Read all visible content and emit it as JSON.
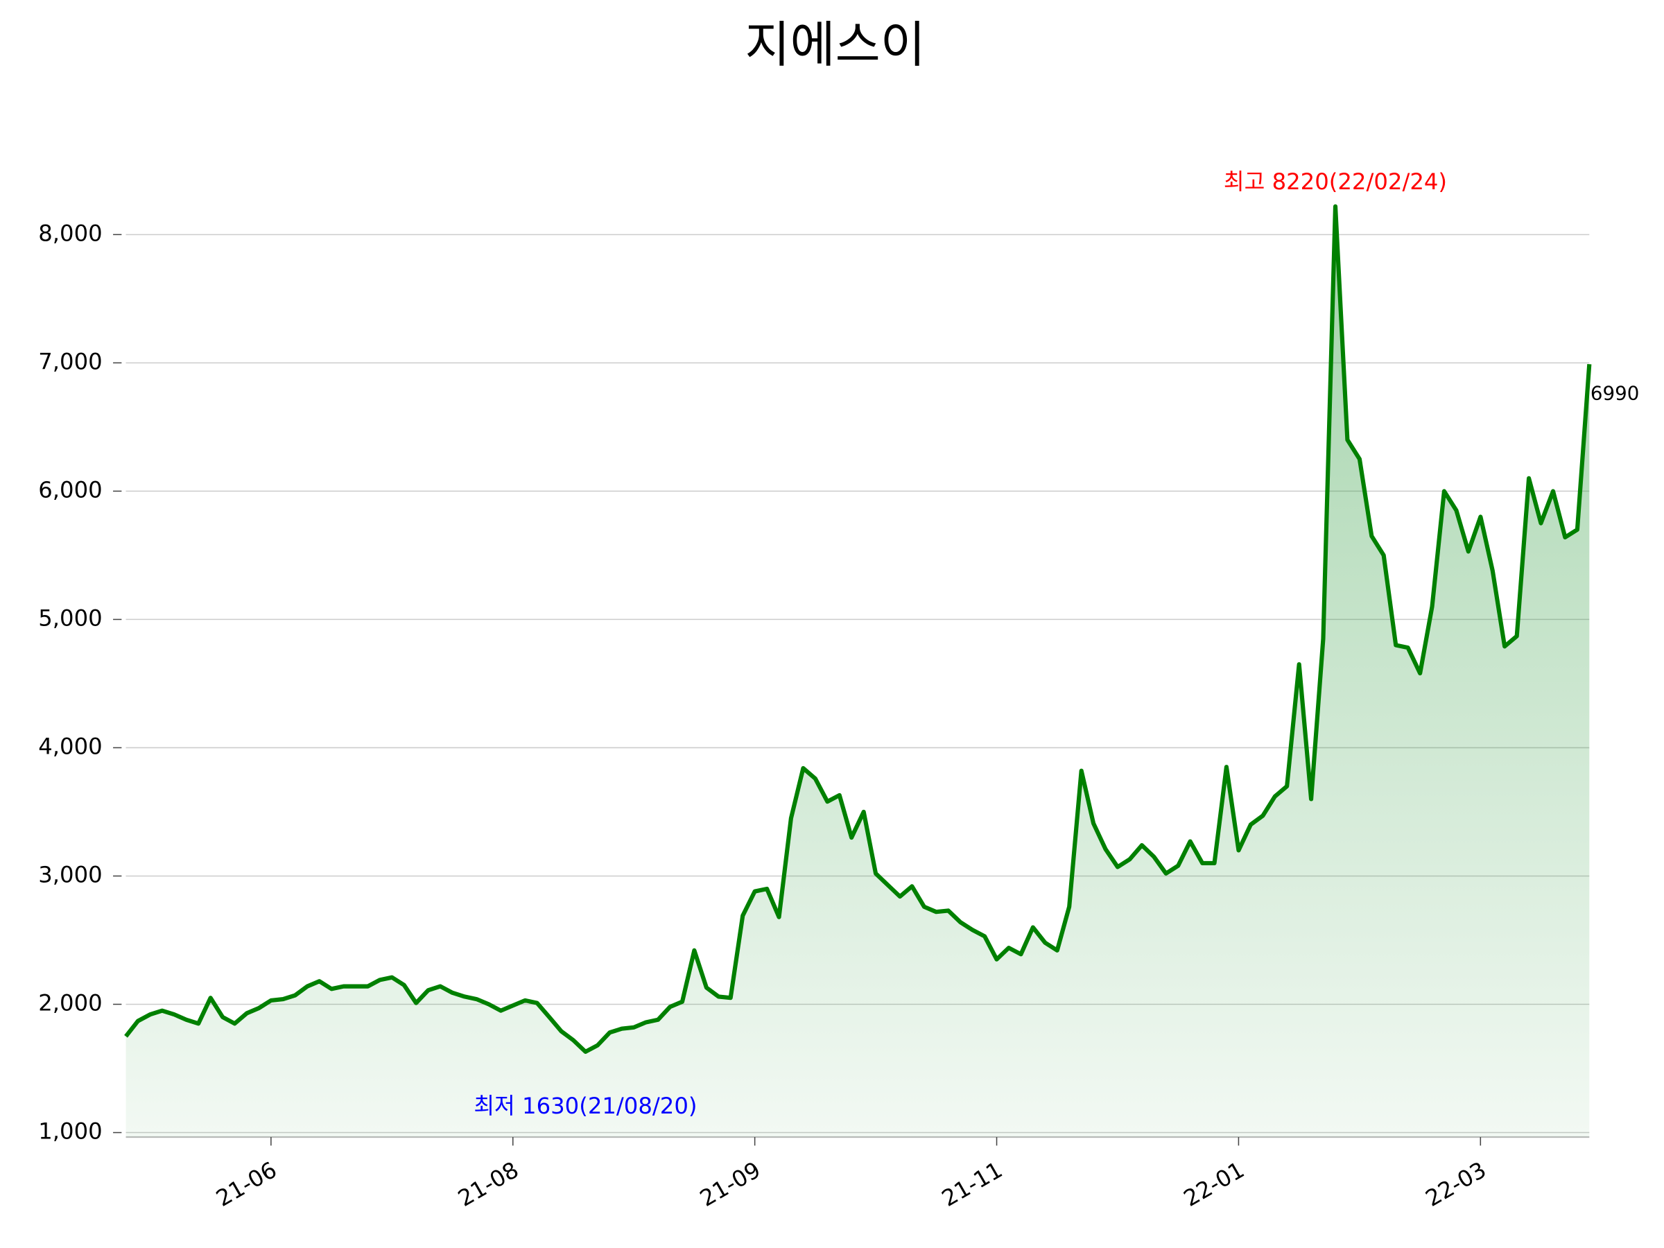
{
  "chart_data": {
    "type": "line",
    "title": "지에스이",
    "color": "#008000",
    "fill": true,
    "grid": true,
    "values": [
      1750,
      1870,
      1920,
      1950,
      1920,
      1880,
      1850,
      2050,
      1900,
      1850,
      1930,
      1970,
      2030,
      2040,
      2070,
      2140,
      2180,
      2120,
      2140,
      2140,
      2140,
      2190,
      2210,
      2150,
      2010,
      2110,
      2140,
      2090,
      2060,
      2040,
      2000,
      1950,
      1990,
      2030,
      2010,
      1900,
      1790,
      1720,
      1630,
      1680,
      1780,
      1810,
      1820,
      1860,
      1880,
      1980,
      2020,
      2420,
      2130,
      2060,
      2050,
      2690,
      2880,
      2900,
      2680,
      3450,
      3840,
      3760,
      3580,
      3630,
      3300,
      3500,
      3020,
      2930,
      2840,
      2920,
      2760,
      2720,
      2730,
      2640,
      2580,
      2530,
      2350,
      2440,
      2390,
      2600,
      2480,
      2420,
      2760,
      3820,
      3410,
      3210,
      3070,
      3130,
      3240,
      3150,
      3020,
      3080,
      3270,
      3100,
      3100,
      3850,
      3200,
      3400,
      3470,
      3620,
      3700,
      4650,
      3600,
      4850,
      8220,
      6400,
      6250,
      5650,
      5500,
      4800,
      4780,
      4580,
      5100,
      6000,
      5850,
      5530,
      5800,
      5380,
      4790,
      4870,
      6100,
      5750,
      6000,
      5640,
      5700,
      6990
    ],
    "xlim": [
      0,
      121
    ],
    "xticks": [
      {
        "value": 12,
        "label": "21-06"
      },
      {
        "value": 32,
        "label": "21-08"
      },
      {
        "value": 52,
        "label": "21-09"
      },
      {
        "value": 72,
        "label": "21-11"
      },
      {
        "value": 92,
        "label": "22-01"
      },
      {
        "value": 112,
        "label": "22-03"
      }
    ],
    "ylim": [
      965,
      8440
    ],
    "yticks": [
      {
        "value": 1000,
        "label": "1,000"
      },
      {
        "value": 2000,
        "label": "2,000"
      },
      {
        "value": 3000,
        "label": "3,000"
      },
      {
        "value": 4000,
        "label": "4,000"
      },
      {
        "value": 5000,
        "label": "5,000"
      },
      {
        "value": 6000,
        "label": "6,000"
      },
      {
        "value": 7000,
        "label": "7,000"
      },
      {
        "value": 8000,
        "label": "8,000"
      }
    ],
    "annotations": {
      "max": {
        "text": "최고 8220(22/02/24)",
        "color": "#ff0000"
      },
      "min": {
        "text": "최저 1630(21/08/20)",
        "color": "#0000ff"
      },
      "last": {
        "text": "6990",
        "color": "#000000"
      }
    }
  }
}
